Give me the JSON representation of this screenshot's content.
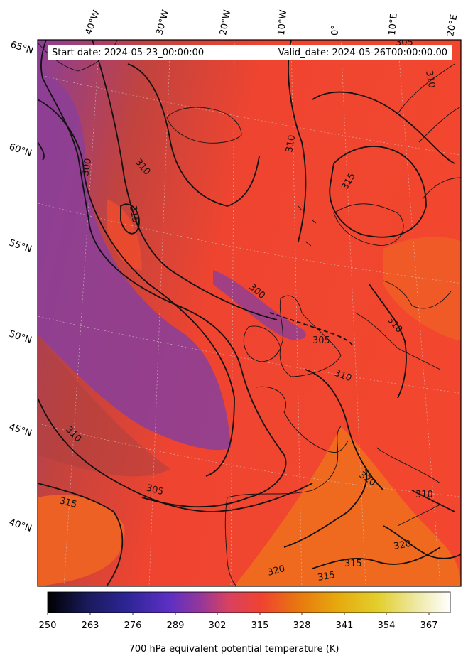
{
  "header": {
    "start_date": "Start date: 2024-05-23_00:00:00",
    "valid_date": "Valid_date: 2024-05-26T00:00:00.00"
  },
  "map": {
    "projection": "lambert-conformal",
    "longitude_labels": [
      "40°W",
      "30°W",
      "20°W",
      "10°W",
      "0°",
      "10°E",
      "20°E"
    ],
    "latitude_labels": [
      "65°N",
      "60°N",
      "55°N",
      "50°N",
      "45°N",
      "40°N"
    ],
    "gridlines": true,
    "coastlines": true,
    "contour_labels": [
      "300",
      "300",
      "305",
      "305",
      "310",
      "310",
      "310",
      "310",
      "310",
      "310",
      "310",
      "315",
      "315",
      "315",
      "315",
      "320",
      "320",
      "320",
      "315",
      "305"
    ],
    "colors": {
      "background_mid": "#f04530",
      "cold_air": "#8a3f9a",
      "warm_air": "#ee6820",
      "contour": "#111111"
    }
  },
  "colorbar": {
    "label": "700 hPa equivalent potential temperature (K)",
    "ticks": [
      "250",
      "263",
      "276",
      "289",
      "302",
      "315",
      "328",
      "341",
      "354",
      "367"
    ],
    "min": 250,
    "max": 372,
    "colormap": "CMRmap",
    "colors": [
      "#000000",
      "#1a1a5c",
      "#3d26b8",
      "#7a35c0",
      "#b0407a",
      "#f04232",
      "#e8760f",
      "#e6a90d",
      "#e6d63c",
      "#f7f4e0",
      "#ffffff"
    ]
  }
}
